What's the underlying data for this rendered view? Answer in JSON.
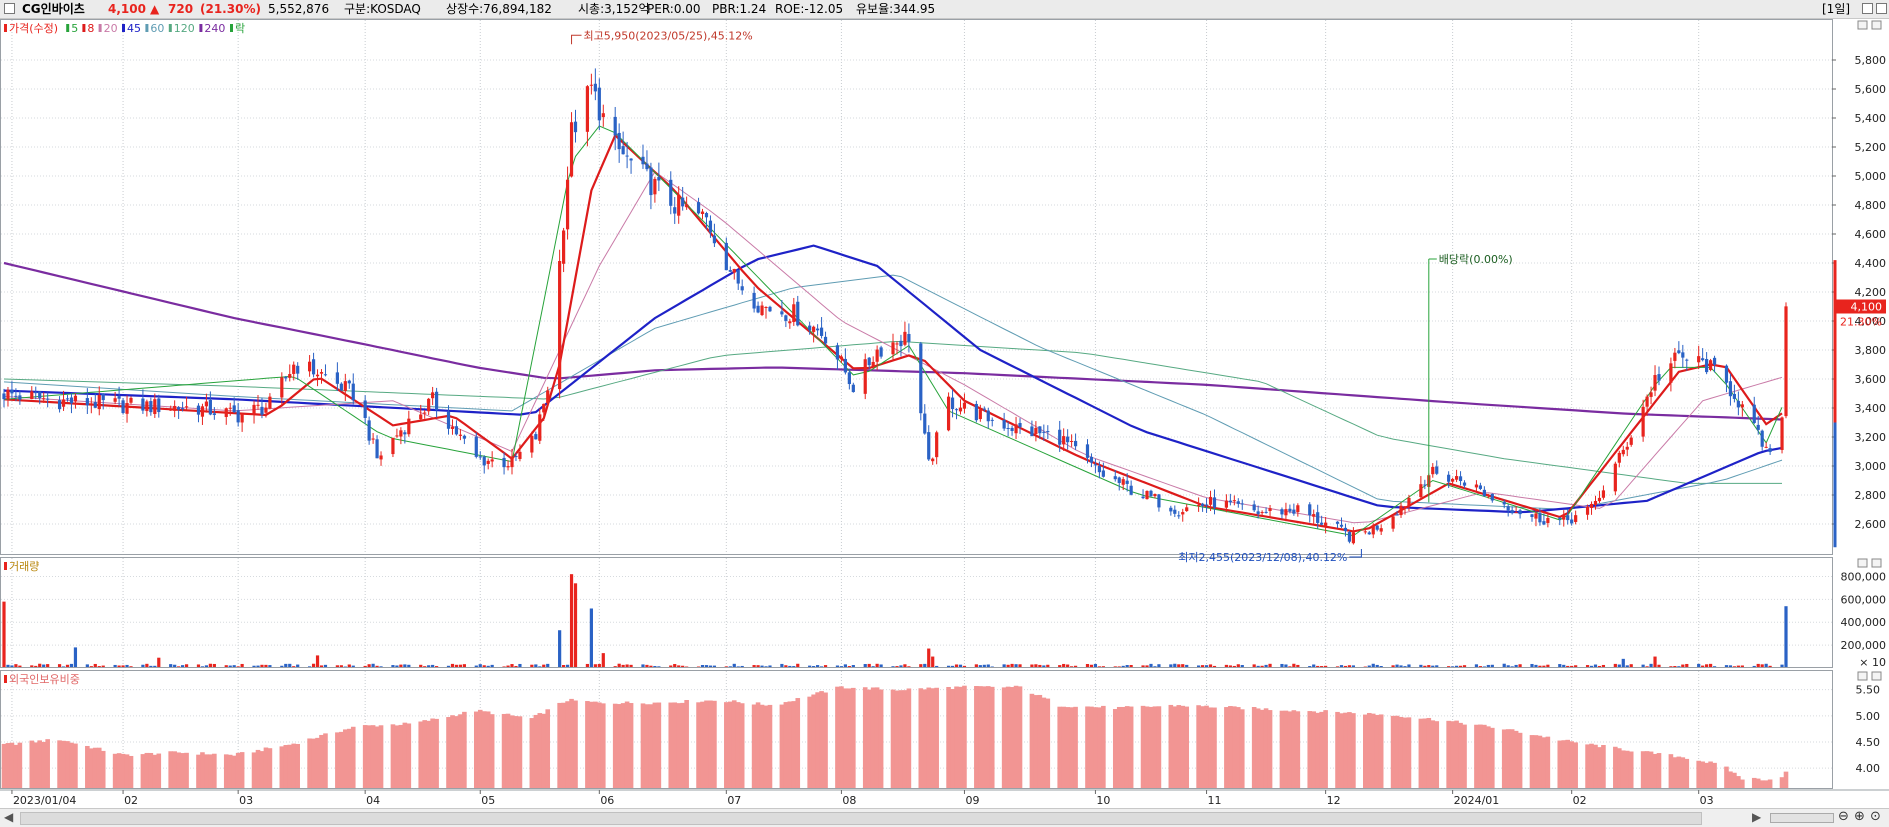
{
  "header": {
    "stock_name": "CG인바이츠",
    "price": "4,100",
    "change_arrow": "▲",
    "change": "720",
    "change_pct": "(21.30%)",
    "volume": "5,552,876",
    "market": "구분:KOSDAQ",
    "listed_shares": "상장수:76,894,182",
    "market_cap": "시총:3,152억",
    "per": "PER:0.00",
    "pbr": "PBR:1.24",
    "roe": "ROE:-12.05",
    "retention": "유보율:344.95",
    "period_button": "[1일]"
  },
  "colors": {
    "up": "#e8241e",
    "down": "#2a62c5",
    "ma5": "#27a33a",
    "ma8": "#dd1b1b",
    "ma20": "#c97aa7",
    "ma45": "#1e22c7",
    "ma60": "#5f9cb3",
    "ma120": "#56a982",
    "ma240": "#7a2ca0",
    "foreign_bar": "#f29593"
  },
  "chart_data": [
    {
      "type": "candlestick",
      "title": "",
      "legend": [
        {
          "label": "가격(수정)",
          "color": "#e8241e"
        },
        {
          "label": "5",
          "color": "#27a33a"
        },
        {
          "label": "8",
          "color": "#dd1b1b"
        },
        {
          "label": "20",
          "color": "#c97aa7"
        },
        {
          "label": "45",
          "color": "#1e22c7"
        },
        {
          "label": "60",
          "color": "#5f9cb3"
        },
        {
          "label": "120",
          "color": "#56a982"
        },
        {
          "label": "240",
          "color": "#7a2ca0"
        },
        {
          "label": "락",
          "color": "#27a33a"
        }
      ],
      "legend_position": "top-left",
      "x_range": [
        "2023-01-02",
        "2024-03-26"
      ],
      "y_axis": {
        "position": "right",
        "ylim": [
          2400,
          6000
        ],
        "ticks": [
          2600,
          2800,
          3000,
          3200,
          3400,
          3600,
          3800,
          4000,
          4200,
          4400,
          4600,
          4800,
          5000,
          5200,
          5400,
          5600,
          5800
        ],
        "tick_labels": [
          "2,600",
          "2,800",
          "3,000",
          "3,200",
          "3,400",
          "3,600",
          "3,800",
          "4,000",
          "4,200",
          "4,400",
          "4,600",
          "4,800",
          "5,000",
          "5,200",
          "5,400",
          "5,600",
          "5,800"
        ]
      },
      "price_path": [
        [
          "2023-01-02",
          3500
        ],
        [
          "2023-01-16",
          3450
        ],
        [
          "2023-02-01",
          3420
        ],
        [
          "2023-02-20",
          3400
        ],
        [
          "2023-03-02",
          3350
        ],
        [
          "2023-03-10",
          3420
        ],
        [
          "2023-03-16",
          3700
        ],
        [
          "2023-03-22",
          3650
        ],
        [
          "2023-04-01",
          3480
        ],
        [
          "2023-04-06",
          3050
        ],
        [
          "2023-04-12",
          3250
        ],
        [
          "2023-04-20",
          3450
        ],
        [
          "2023-05-01",
          3050
        ],
        [
          "2023-05-10",
          3020
        ],
        [
          "2023-05-16",
          3200
        ],
        [
          "2023-05-19",
          3550
        ],
        [
          "2023-05-22",
          4400
        ],
        [
          "2023-05-25",
          5300
        ],
        [
          "2023-05-30",
          5600
        ],
        [
          "2023-06-05",
          5200
        ],
        [
          "2023-06-12",
          5000
        ],
        [
          "2023-06-20",
          4800
        ],
        [
          "2023-06-28",
          4700
        ],
        [
          "2023-07-05",
          4300
        ],
        [
          "2023-07-12",
          4100
        ],
        [
          "2023-07-20",
          4050
        ],
        [
          "2023-07-28",
          3900
        ],
        [
          "2023-08-04",
          3550
        ],
        [
          "2023-08-10",
          3800
        ],
        [
          "2023-08-18",
          3900
        ],
        [
          "2023-08-23",
          3000
        ],
        [
          "2023-08-28",
          3450
        ],
        [
          "2023-09-05",
          3350
        ],
        [
          "2023-09-15",
          3250
        ],
        [
          "2023-09-25",
          3200
        ],
        [
          "2023-10-05",
          2950
        ],
        [
          "2023-10-16",
          2800
        ],
        [
          "2023-10-25",
          2700
        ],
        [
          "2023-11-03",
          2750
        ],
        [
          "2023-11-14",
          2680
        ],
        [
          "2023-11-24",
          2700
        ],
        [
          "2023-12-04",
          2560
        ],
        [
          "2023-12-08",
          2500
        ],
        [
          "2023-12-15",
          2600
        ],
        [
          "2023-12-21",
          2750
        ],
        [
          "2023-12-27",
          2950
        ],
        [
          "2024-01-05",
          2900
        ],
        [
          "2024-01-12",
          2780
        ],
        [
          "2024-01-22",
          2650
        ],
        [
          "2024-01-30",
          2620
        ],
        [
          "2024-02-06",
          2700
        ],
        [
          "2024-02-14",
          3100
        ],
        [
          "2024-02-22",
          3600
        ],
        [
          "2024-02-28",
          3750
        ],
        [
          "2024-03-06",
          3700
        ],
        [
          "2024-03-13",
          3500
        ],
        [
          "2024-03-19",
          3200
        ],
        [
          "2024-03-22",
          3050
        ],
        [
          "2024-03-25",
          3380
        ],
        [
          "2024-03-26",
          4100
        ]
      ],
      "moving_averages": [
        {
          "label": "240",
          "color": "#7a2ca0",
          "points": [
            [
              "2023-01-02",
              4400
            ],
            [
              "2023-03-01",
              4020
            ],
            [
              "2023-04-01",
              3850
            ],
            [
              "2023-05-01",
              3680
            ],
            [
              "2023-05-20",
              3600
            ],
            [
              "2023-06-15",
              3660
            ],
            [
              "2023-07-15",
              3680
            ],
            [
              "2023-09-01",
              3640
            ],
            [
              "2023-11-01",
              3560
            ],
            [
              "2024-01-01",
              3440
            ],
            [
              "2024-02-15",
              3360
            ],
            [
              "2024-03-26",
              3320
            ]
          ]
        },
        {
          "label": "120",
          "color": "#56a982",
          "points": [
            [
              "2023-01-02",
              3600
            ],
            [
              "2023-03-01",
              3550
            ],
            [
              "2023-05-20",
              3460
            ],
            [
              "2023-07-01",
              3760
            ],
            [
              "2023-08-15",
              3860
            ],
            [
              "2023-10-01",
              3780
            ],
            [
              "2023-11-15",
              3580
            ],
            [
              "2023-12-15",
              3200
            ],
            [
              "2024-01-15",
              3050
            ],
            [
              "2024-03-01",
              2880
            ],
            [
              "2024-03-26",
              2880
            ]
          ]
        },
        {
          "label": "60",
          "color": "#5f9cb3",
          "points": [
            [
              "2023-01-02",
              3580
            ],
            [
              "2023-03-01",
              3480
            ],
            [
              "2023-05-10",
              3380
            ],
            [
              "2023-06-15",
              3950
            ],
            [
              "2023-07-20",
              4230
            ],
            [
              "2023-08-15",
              4320
            ],
            [
              "2023-09-20",
              3820
            ],
            [
              "2023-11-01",
              3350
            ],
            [
              "2023-12-15",
              2760
            ],
            [
              "2024-01-31",
              2700
            ],
            [
              "2024-03-10",
              2900
            ],
            [
              "2024-03-26",
              3050
            ]
          ]
        },
        {
          "label": "45",
          "color": "#1e22c7",
          "points": [
            [
              "2023-01-02",
              3520
            ],
            [
              "2023-03-01",
              3460
            ],
            [
              "2023-05-15",
              3350
            ],
            [
              "2023-06-15",
              4020
            ],
            [
              "2023-07-10",
              4420
            ],
            [
              "2023-07-25",
              4520
            ],
            [
              "2023-08-10",
              4380
            ],
            [
              "2023-09-05",
              3800
            ],
            [
              "2023-10-15",
              3250
            ],
            [
              "2023-12-15",
              2720
            ],
            [
              "2024-01-20",
              2680
            ],
            [
              "2024-02-20",
              2760
            ],
            [
              "2024-03-20",
              3100
            ],
            [
              "2024-03-26",
              3130
            ]
          ]
        },
        {
          "label": "20",
          "color": "#c97aa7",
          "points": [
            [
              "2023-01-02",
              3480
            ],
            [
              "2023-03-01",
              3380
            ],
            [
              "2023-04-10",
              3450
            ],
            [
              "2023-05-10",
              3100
            ],
            [
              "2023-06-01",
              4380
            ],
            [
              "2023-06-15",
              5030
            ],
            [
              "2023-07-01",
              4720
            ],
            [
              "2023-08-01",
              4000
            ],
            [
              "2023-09-01",
              3560
            ],
            [
              "2023-10-01",
              3080
            ],
            [
              "2023-11-01",
              2780
            ],
            [
              "2023-12-10",
              2600
            ],
            [
              "2024-01-10",
              2820
            ],
            [
              "2024-02-10",
              2700
            ],
            [
              "2024-03-05",
              3450
            ],
            [
              "2024-03-26",
              3620
            ]
          ]
        },
        {
          "label": "8",
          "color": "#dd1b1b",
          "points": [
            [
              "2023-01-02",
              3460
            ],
            [
              "2023-03-10",
              3350
            ],
            [
              "2023-03-22",
              3620
            ],
            [
              "2023-04-10",
              3280
            ],
            [
              "2023-04-25",
              3350
            ],
            [
              "2023-05-10",
              3050
            ],
            [
              "2023-05-20",
              3400
            ],
            [
              "2023-05-30",
              4900
            ],
            [
              "2023-06-05",
              5280
            ],
            [
              "2023-06-20",
              4900
            ],
            [
              "2023-07-10",
              4250
            ],
            [
              "2023-08-05",
              3650
            ],
            [
              "2023-08-20",
              3780
            ],
            [
              "2023-09-01",
              3450
            ],
            [
              "2023-10-01",
              3050
            ],
            [
              "2023-11-01",
              2720
            ],
            [
              "2023-12-10",
              2540
            ],
            [
              "2024-01-01",
              2880
            ],
            [
              "2024-01-30",
              2640
            ],
            [
              "2024-02-28",
              3650
            ],
            [
              "2024-03-10",
              3720
            ],
            [
              "2024-03-22",
              3250
            ],
            [
              "2024-03-26",
              3400
            ]
          ]
        },
        {
          "label": "5",
          "color": "#27a33a",
          "points": [
            [
              "2023-01-02",
              3460
            ],
            [
              "2023-03-16",
              3620
            ],
            [
              "2023-04-08",
              3200
            ],
            [
              "2023-05-10",
              3030
            ],
            [
              "2023-05-25",
              5100
            ],
            [
              "2023-06-02",
              5380
            ],
            [
              "2023-06-25",
              4750
            ],
            [
              "2023-08-05",
              3600
            ],
            [
              "2023-08-18",
              3830
            ],
            [
              "2023-08-28",
              3380
            ],
            [
              "2023-10-15",
              2800
            ],
            [
              "2023-12-08",
              2520
            ],
            [
              "2023-12-28",
              2900
            ],
            [
              "2024-01-30",
              2620
            ],
            [
              "2024-02-25",
              3680
            ],
            [
              "2024-03-08",
              3680
            ],
            [
              "2024-03-22",
              3120
            ],
            [
              "2024-03-26",
              3500
            ]
          ]
        }
      ],
      "annotations": [
        {
          "text": "최고5,950(2023/05/25),45.12%",
          "x": "2023-05-25",
          "y": 5950
        },
        {
          "text": "최저2,455(2023/12/08),40.12%",
          "x": "2023-12-08",
          "y": 2455
        },
        {
          "text": "배당락(0.00%)",
          "x": "2023-12-27",
          "y": 4400
        }
      ],
      "current_price_label": "4,100",
      "current_change_label": "21.30%"
    },
    {
      "type": "bar",
      "title": "거래량",
      "legend_position": "top-left",
      "y_axis": {
        "position": "right",
        "ylim": [
          0,
          900000
        ],
        "ticks": [
          200000,
          400000,
          600000,
          800000
        ],
        "tick_labels": [
          "200,000",
          "400,000",
          "600,000",
          "800,000"
        ],
        "multiplier": "× 10"
      },
      "spikes": [
        [
          "2023-01-02",
          580000
        ],
        [
          "2023-01-20",
          180000
        ],
        [
          "2023-02-10",
          90000
        ],
        [
          "2023-03-22",
          110000
        ],
        [
          "2023-05-22",
          330000
        ],
        [
          "2023-05-25",
          820000
        ],
        [
          "2023-05-26",
          740000
        ],
        [
          "2023-05-30",
          520000
        ],
        [
          "2023-06-02",
          130000
        ],
        [
          "2023-08-23",
          170000
        ],
        [
          "2023-08-24",
          100000
        ],
        [
          "2024-02-14",
          80000
        ],
        [
          "2024-02-22",
          100000
        ],
        [
          "2024-03-26",
          540000
        ]
      ],
      "baseline": 25000
    },
    {
      "type": "bar",
      "title": "외국인보유비중",
      "legend_position": "top-left",
      "y_axis": {
        "position": "right",
        "ylim": [
          3.6,
          5.8
        ],
        "ticks": [
          4.0,
          4.5,
          5.0,
          5.5
        ],
        "tick_labels": [
          "4.00",
          "4.50",
          "5.00",
          "5.50"
        ]
      },
      "points": [
        [
          "2023-01-02",
          4.45
        ],
        [
          "2023-01-16",
          4.55
        ],
        [
          "2023-02-01",
          4.25
        ],
        [
          "2023-02-15",
          4.3
        ],
        [
          "2023-03-01",
          4.25
        ],
        [
          "2023-03-15",
          4.45
        ],
        [
          "2023-04-01",
          4.8
        ],
        [
          "2023-04-15",
          4.85
        ],
        [
          "2023-05-01",
          5.1
        ],
        [
          "2023-05-15",
          4.95
        ],
        [
          "2023-05-24",
          5.3
        ],
        [
          "2023-06-01",
          5.25
        ],
        [
          "2023-06-15",
          5.25
        ],
        [
          "2023-07-01",
          5.3
        ],
        [
          "2023-07-15",
          5.2
        ],
        [
          "2023-08-01",
          5.55
        ],
        [
          "2023-08-15",
          5.5
        ],
        [
          "2023-09-01",
          5.55
        ],
        [
          "2023-09-15",
          5.55
        ],
        [
          "2023-09-25",
          5.2
        ],
        [
          "2023-10-10",
          5.15
        ],
        [
          "2023-10-25",
          5.2
        ],
        [
          "2023-11-10",
          5.15
        ],
        [
          "2023-11-25",
          5.1
        ],
        [
          "2023-12-10",
          5.05
        ],
        [
          "2023-12-20",
          5.0
        ],
        [
          "2024-01-01",
          4.9
        ],
        [
          "2024-01-15",
          4.75
        ],
        [
          "2024-02-01",
          4.5
        ],
        [
          "2024-02-15",
          4.35
        ],
        [
          "2024-03-01",
          4.2
        ],
        [
          "2024-03-10",
          4.05
        ],
        [
          "2024-03-15",
          3.8
        ],
        [
          "2024-03-24",
          3.78
        ],
        [
          "2024-03-26",
          3.92
        ]
      ]
    }
  ],
  "x_axis_labels": [
    "2023/01/04",
    "02",
    "03",
    "04",
    "05",
    "06",
    "07",
    "08",
    "09",
    "10",
    "11",
    "12",
    "2024/01",
    "02",
    "03"
  ],
  "x_axis_dates": [
    "2023-01-04",
    "2023-02-01",
    "2023-03-02",
    "2023-04-03",
    "2023-05-02",
    "2023-06-01",
    "2023-07-03",
    "2023-08-01",
    "2023-09-01",
    "2023-10-04",
    "2023-11-01",
    "2023-12-01",
    "2024-01-02",
    "2024-02-01",
    "2024-03-04"
  ]
}
